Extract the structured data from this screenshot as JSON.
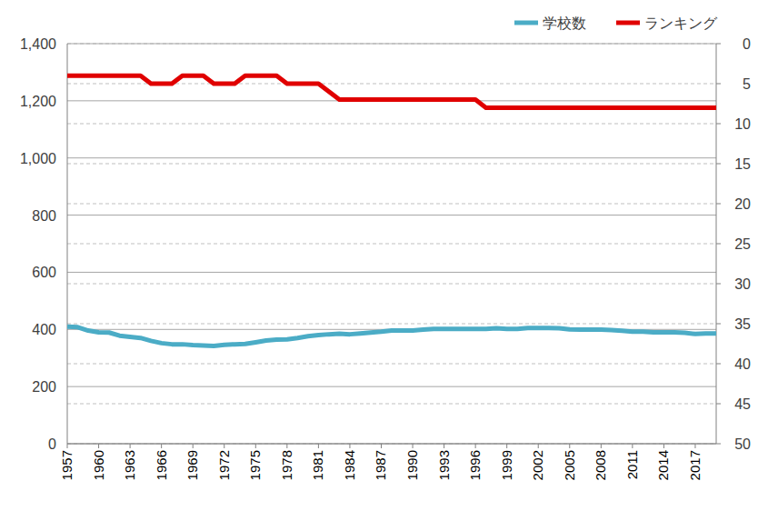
{
  "chart_data": {
    "type": "line",
    "x": [
      1957,
      1958,
      1959,
      1960,
      1961,
      1962,
      1963,
      1964,
      1965,
      1966,
      1967,
      1968,
      1969,
      1970,
      1971,
      1972,
      1973,
      1974,
      1975,
      1976,
      1977,
      1978,
      1979,
      1980,
      1981,
      1982,
      1983,
      1984,
      1985,
      1986,
      1987,
      1988,
      1989,
      1990,
      1991,
      1992,
      1993,
      1994,
      1995,
      1996,
      1997,
      1998,
      1999,
      2000,
      2001,
      2002,
      2003,
      2004,
      2005,
      2006,
      2007,
      2008,
      2009,
      2010,
      2011,
      2012,
      2013,
      2014,
      2015,
      2016,
      2017,
      2018,
      2019
    ],
    "xlim": [
      1957,
      2019
    ],
    "xticks": [
      1957,
      1960,
      1963,
      1966,
      1969,
      1972,
      1975,
      1978,
      1981,
      1984,
      1987,
      1990,
      1993,
      1996,
      1999,
      2002,
      2005,
      2008,
      2011,
      2014,
      2017
    ],
    "ylim": [
      0,
      1400
    ],
    "yticks": [
      0,
      200,
      400,
      600,
      800,
      {
        "value": 1000,
        "label": "1,000"
      },
      {
        "value": 1200,
        "label": "1,200"
      },
      {
        "value": 1400,
        "label": "1,400"
      }
    ],
    "y2lim": [
      50,
      0
    ],
    "y2ticks": [
      0,
      5,
      10,
      15,
      20,
      25,
      30,
      35,
      40,
      45,
      50
    ],
    "grid": true,
    "legend": "top-right",
    "series": [
      {
        "name": "学校数",
        "color": "#4bacc6",
        "values": [
          410,
          408,
          396,
          390,
          389,
          378,
          374,
          370,
          360,
          352,
          348,
          348,
          345,
          344,
          342,
          346,
          348,
          349,
          355,
          361,
          364,
          365,
          370,
          376,
          380,
          383,
          385,
          383,
          386,
          389,
          392,
          396,
          396,
          396,
          399,
          402,
          402,
          402,
          402,
          402,
          402,
          404,
          402,
          402,
          405,
          405,
          405,
          404,
          400,
          399,
          399,
          399,
          398,
          395,
          392,
          392,
          390,
          390,
          390,
          388,
          384,
          386,
          386
        ]
      },
      {
        "name": "ランキング",
        "color": "#e00000",
        "axis": "y2",
        "values": [
          4,
          4,
          4,
          4,
          4,
          4,
          4,
          4,
          5,
          5,
          5,
          4,
          4,
          4,
          5,
          5,
          5,
          4,
          4,
          4,
          4,
          5,
          5,
          5,
          5,
          6,
          7,
          7,
          7,
          7,
          7,
          7,
          7,
          7,
          7,
          7,
          7,
          7,
          7,
          7,
          8,
          8,
          8,
          8,
          8,
          8,
          8,
          8,
          8,
          8,
          8,
          8,
          8,
          8,
          8,
          8,
          8,
          8,
          8,
          8,
          8,
          8,
          8
        ]
      }
    ]
  }
}
